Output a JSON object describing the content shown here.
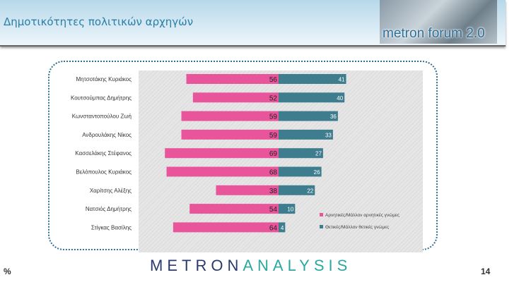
{
  "header": {
    "title": "Δημοτικότητες πολιτικών αρχηγών",
    "logo_text": "metron forum 2.0"
  },
  "footer": {
    "logo_part1": "METRON",
    "logo_part2": "ANALYSIS",
    "unit": "%",
    "page_number": "14"
  },
  "chart_data": {
    "type": "bar",
    "orientation": "horizontal-diverging",
    "categories": [
      "Μητσοτάκης Κυριάκος",
      "Κουτσούμπας Δημήτρης",
      "Κωνσταντοπούλου Ζωή",
      "Ανδρουλάκης Νίκος",
      "Κασσελάκης Στέφανος",
      "Βελόπουλος Κυριάκος",
      "Χαρίτσης Αλέξης",
      "Νατσιός Δημήτρης",
      "Στίγκας Βασίλης"
    ],
    "series": [
      {
        "name": "Αρνητικές/Μάλλον αρνητικές γνώμες",
        "color": "#e8559a",
        "values": [
          56,
          52,
          59,
          59,
          69,
          68,
          38,
          54,
          64
        ]
      },
      {
        "name": "Θετικές/Μάλλον θετικές γνώμες",
        "color": "#3e7d8e",
        "values": [
          41,
          40,
          36,
          33,
          27,
          26,
          22,
          10,
          4
        ]
      }
    ],
    "legend": "bottom-right",
    "grid": false
  }
}
